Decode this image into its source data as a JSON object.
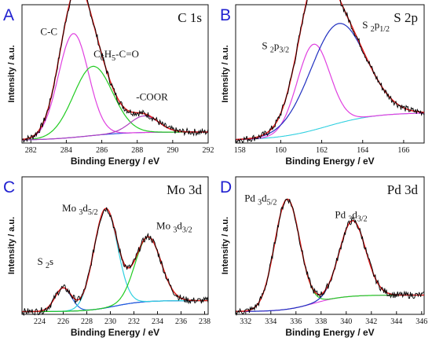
{
  "chart_data": [
    {
      "type": "line",
      "panel_letter": "A",
      "title": "C 1s",
      "xlabel": "Binding Energy / eV",
      "ylabel": "Intensity / a.u.",
      "xlim": [
        281.5,
        292
      ],
      "xticks": [
        "282",
        "284",
        "286",
        "288",
        "290",
        "292"
      ],
      "grid": false,
      "colors": {
        "raw": "#000000",
        "envelope": "#e02020",
        "p1": "#e040e0",
        "p2": "#22cc22",
        "p3": "#b040c0",
        "background": "#2040e0"
      },
      "peaks": [
        {
          "component": "p1",
          "center": 284.4,
          "height": 0.75,
          "width": 0.85
        },
        {
          "component": "p2",
          "center": 285.5,
          "height": 0.5,
          "width": 1.1
        },
        {
          "component": "p3",
          "center": 288.4,
          "height": 0.12,
          "width": 0.8
        }
      ],
      "background": {
        "left": 0.02,
        "right": 0.08
      },
      "annotations": [
        {
          "text": "C-C",
          "x": 283.6,
          "y": 0.78
        },
        {
          "text": "C6H5-C=O",
          "x": 286.6,
          "y": 0.62
        },
        {
          "text": "-COOR",
          "x": 289.0,
          "y": 0.31
        }
      ]
    },
    {
      "type": "line",
      "panel_letter": "B",
      "title": "S 2p",
      "xlabel": "Binding Energy / eV",
      "ylabel": "Intensity / a.u.",
      "xlim": [
        157.8,
        167
      ],
      "xticks": [
        "158",
        "160",
        "162",
        "164",
        "166"
      ],
      "grid": false,
      "colors": {
        "raw": "#000000",
        "envelope": "#e02020",
        "p1": "#e040e0",
        "p2": "#2030c0",
        "background": "#30d0e0"
      },
      "peaks": [
        {
          "component": "p1",
          "center": 161.6,
          "height": 0.62,
          "width": 0.8
        },
        {
          "component": "p2",
          "center": 162.8,
          "height": 0.72,
          "width": 1.35
        }
      ],
      "background": {
        "left": 0.02,
        "right": 0.22
      },
      "annotations": [
        {
          "text": "S 2p3/2",
          "x": 160.0,
          "y": 0.68
        },
        {
          "text": "S 2p1/2",
          "x": 164.9,
          "y": 0.83
        }
      ]
    },
    {
      "type": "line",
      "panel_letter": "C",
      "title": "Mo 3d",
      "xlabel": "Binding Energy / eV",
      "ylabel": "Intensity / a.u.",
      "xlim": [
        222.5,
        238.3
      ],
      "xticks": [
        "224",
        "226",
        "228",
        "230",
        "232",
        "234",
        "236",
        "238"
      ],
      "grid": false,
      "colors": {
        "raw": "#000000",
        "envelope": "#e02020",
        "p1": "#2060e0",
        "p2": "#30d0e0",
        "p3": "#22cc22",
        "background": "#4020c0"
      },
      "peaks": [
        {
          "component": "p1",
          "center": 226.0,
          "height": 0.17,
          "width": 0.7
        },
        {
          "component": "p2",
          "center": 229.6,
          "height": 0.72,
          "width": 1.0
        },
        {
          "component": "p3",
          "center": 233.2,
          "height": 0.47,
          "width": 1.1
        }
      ],
      "background": {
        "left": 0.02,
        "right": 0.1
      },
      "annotations": [
        {
          "text": "S 2s",
          "x": 225.4,
          "y": 0.36
        },
        {
          "text": "Mo 3d5/2",
          "x": 227.5,
          "y": 0.75
        },
        {
          "text": "Mo 3d3/2",
          "x": 235.5,
          "y": 0.62
        }
      ]
    },
    {
      "type": "line",
      "panel_letter": "D",
      "title": "Pd 3d",
      "xlabel": "Binding Energy / eV",
      "ylabel": "Intensity / a.u.",
      "xlim": [
        331.2,
        346.2
      ],
      "xticks": [
        "332",
        "334",
        "336",
        "338",
        "340",
        "342",
        "344",
        "346"
      ],
      "grid": false,
      "colors": {
        "raw": "#000000",
        "envelope": "#e02020",
        "p1": "#22cc22",
        "p2": "#2030c0",
        "background": "#e040e0"
      },
      "peaks": [
        {
          "component": "p1",
          "center": 335.3,
          "height": 0.8,
          "width": 1.0
        },
        {
          "component": "p2",
          "center": 340.5,
          "height": 0.55,
          "width": 1.05
        }
      ],
      "background": {
        "left": 0.02,
        "right": 0.14
      },
      "annotations": [
        {
          "text": "Pd 3d5/2",
          "x": 333.4,
          "y": 0.82
        },
        {
          "text": "Pd 3d3/2",
          "x": 340.6,
          "y": 0.7
        }
      ]
    }
  ]
}
